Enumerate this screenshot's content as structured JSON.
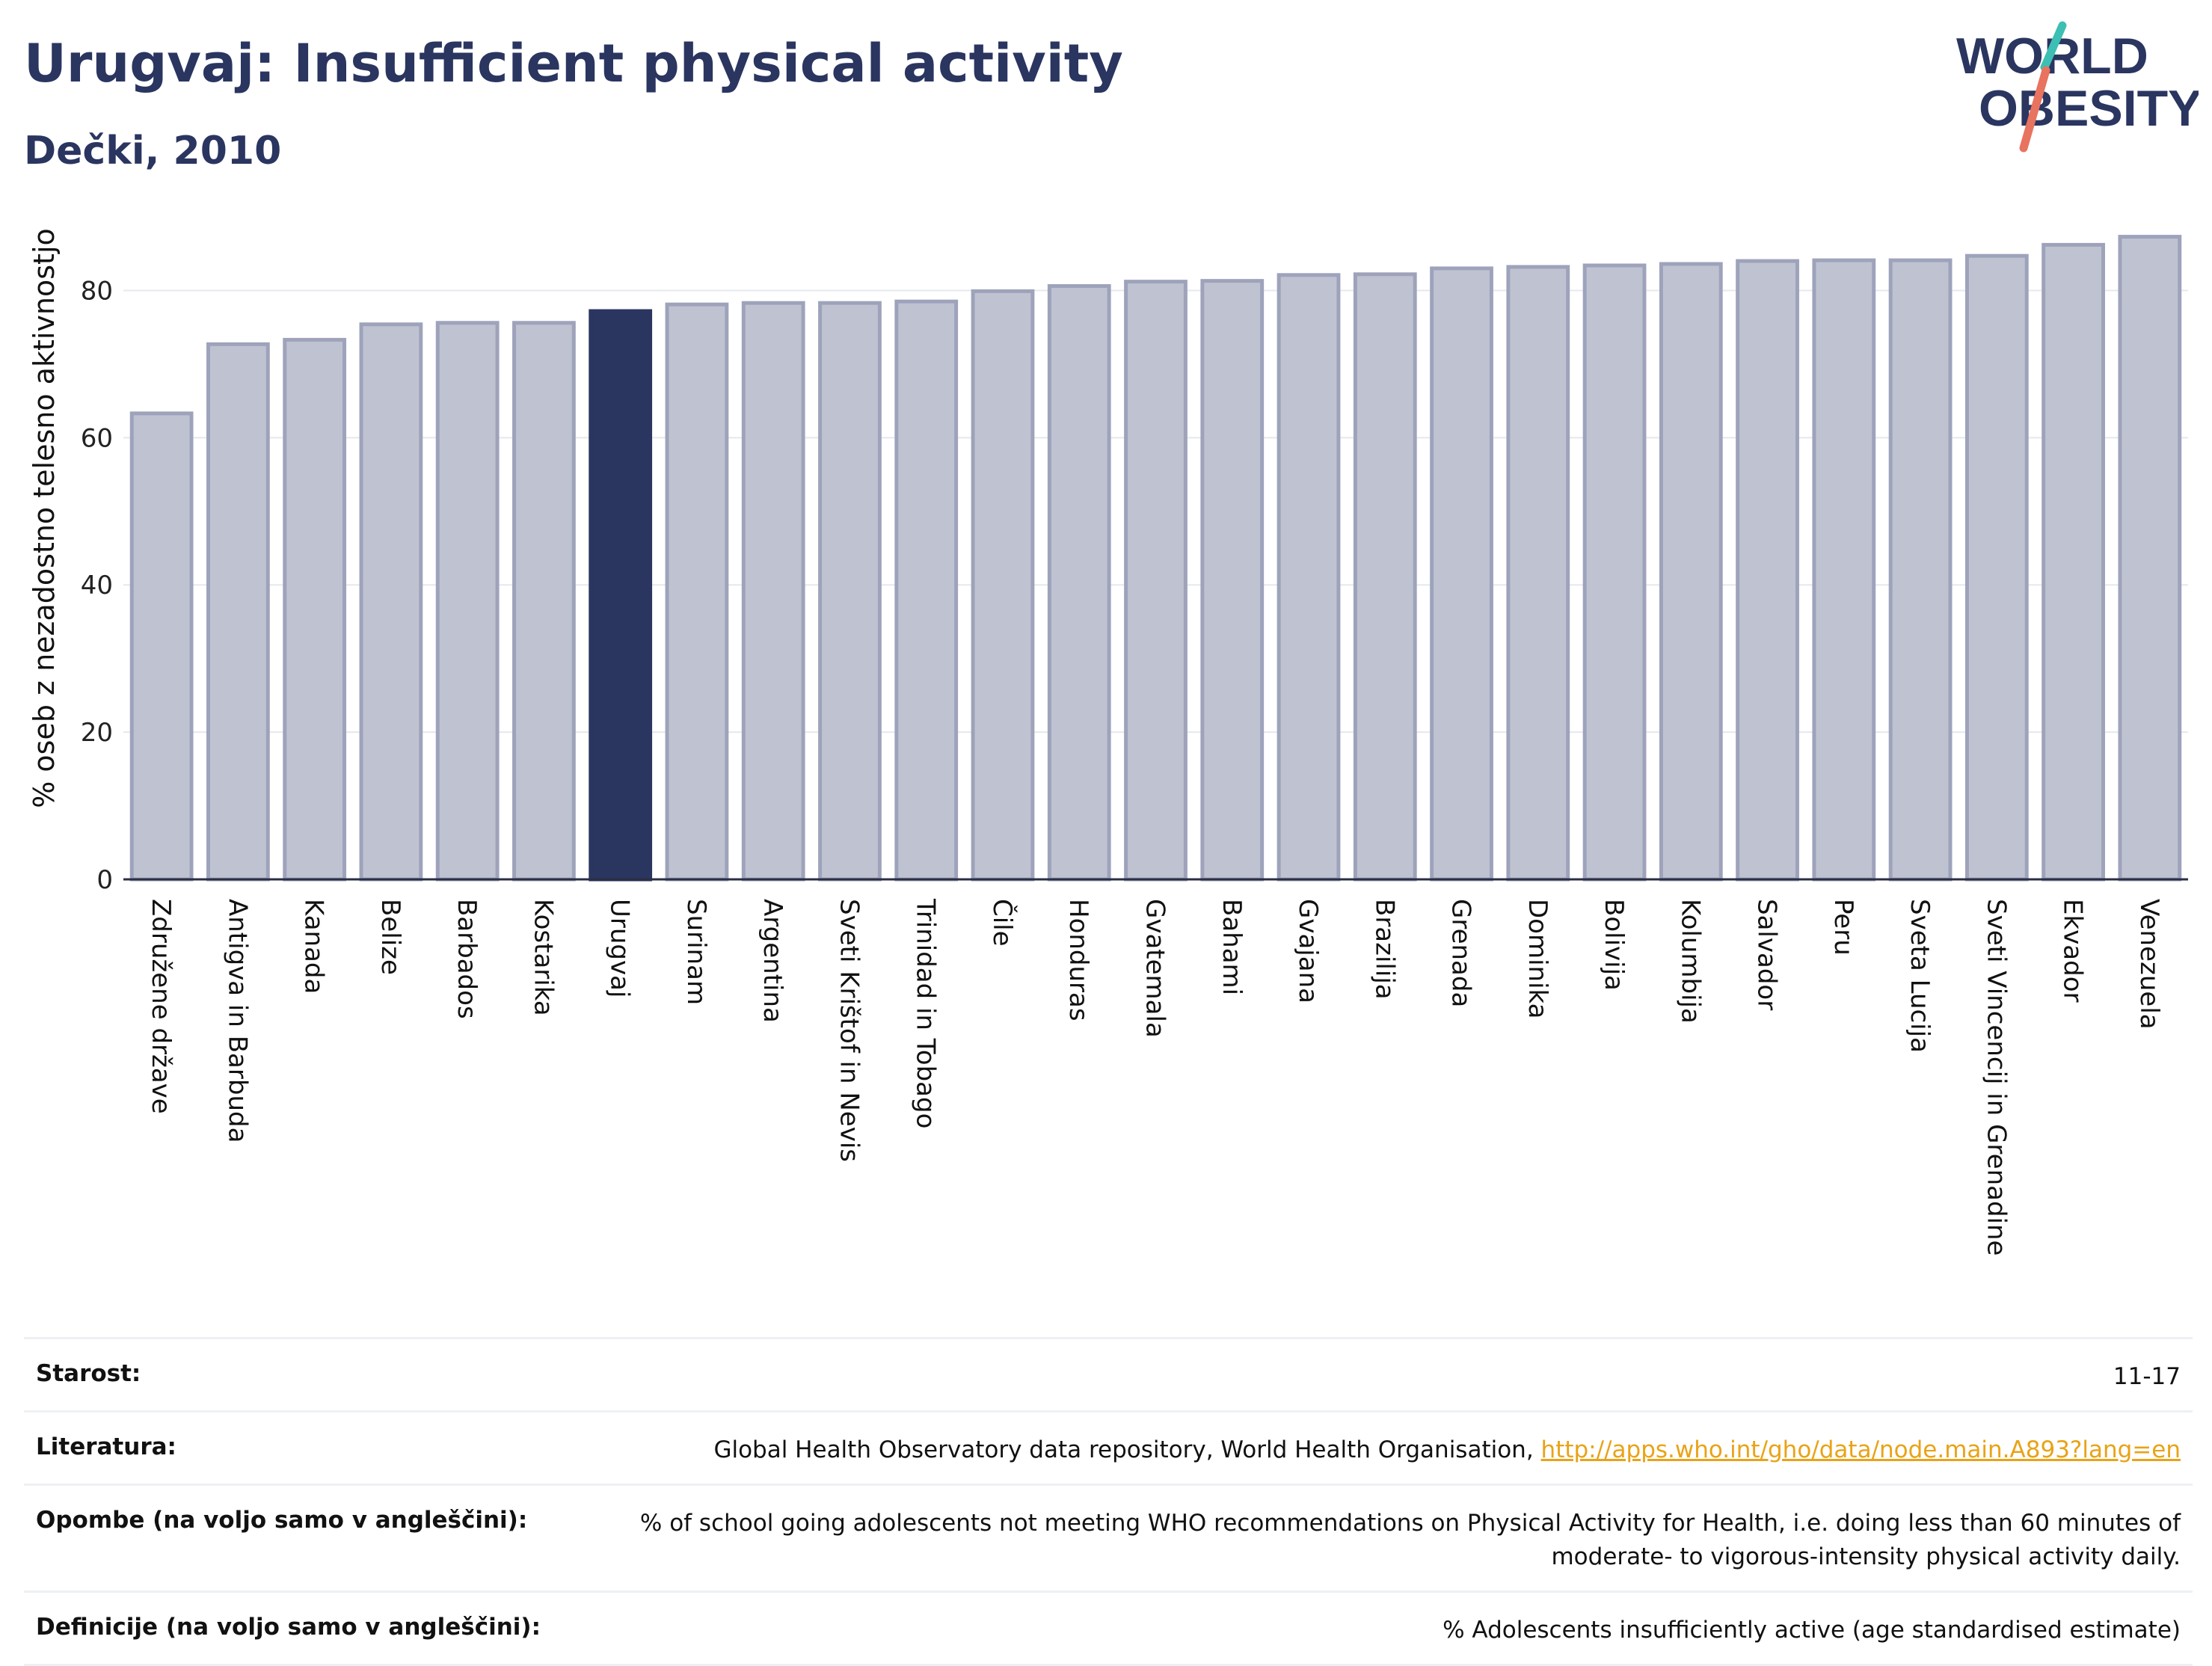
{
  "title": "Urugvaj: Insufficient physical activity",
  "subtitle": "Dečki, 2010",
  "logo": {
    "line1": "WORLD",
    "line2": "OBESITY"
  },
  "colors": {
    "highlight": "#2a3560",
    "bar": "#bfc3d1",
    "bar_stroke": "#9ea3bb",
    "accent_red": "#e8735f",
    "accent_teal": "#3dbfb3"
  },
  "chart_data": {
    "type": "bar",
    "ylabel": "% oseb z nezadostno telesno aktivnostjo",
    "xlabel": "",
    "ylim": [
      0,
      90
    ],
    "yticks": [
      0,
      20,
      40,
      60,
      80
    ],
    "grid": true,
    "highlight": "Urugvaj",
    "categories": [
      "Združene države",
      "Antigva in Barbuda",
      "Kanada",
      "Belize",
      "Barbados",
      "Kostarika",
      "Urugvaj",
      "Surinam",
      "Argentina",
      "Sveti Krištof in Nevis",
      "Trinidad in Tobago",
      "Čile",
      "Honduras",
      "Gvatemala",
      "Bahami",
      "Gvajana",
      "Brazilija",
      "Grenada",
      "Dominika",
      "Bolivija",
      "Kolumbija",
      "Salvador",
      "Peru",
      "Sveta Lucija",
      "Sveti Vincencij in Grenadine",
      "Ekvador",
      "Venezuela"
    ],
    "values": [
      63.3,
      72.7,
      73.3,
      75.4,
      75.6,
      75.6,
      77.2,
      78.1,
      78.3,
      78.3,
      78.5,
      79.9,
      80.6,
      81.2,
      81.3,
      82.1,
      82.2,
      83.0,
      83.2,
      83.4,
      83.6,
      84.0,
      84.1,
      84.1,
      84.7,
      86.2,
      87.3
    ]
  },
  "info": {
    "age_label": "Starost:",
    "age_value": "11-17",
    "lit_label": "Literatura:",
    "lit_text": "Global Health Observatory data repository, World Health Organisation, ",
    "lit_link": "http://apps.who.int/gho/data/node.main.A893?lang=en",
    "notes_label": "Opombe (na voljo samo v angleščini):",
    "notes_value": "% of school going adolescents not meeting WHO recommendations on Physical Activity for Health, i.e. doing less than 60 minutes of moderate- to vigorous-intensity physical activity daily.",
    "def_label": "Definicije (na voljo samo v angleščini):",
    "def_value": "% Adolescents insufficiently active (age standardised estimate)"
  }
}
